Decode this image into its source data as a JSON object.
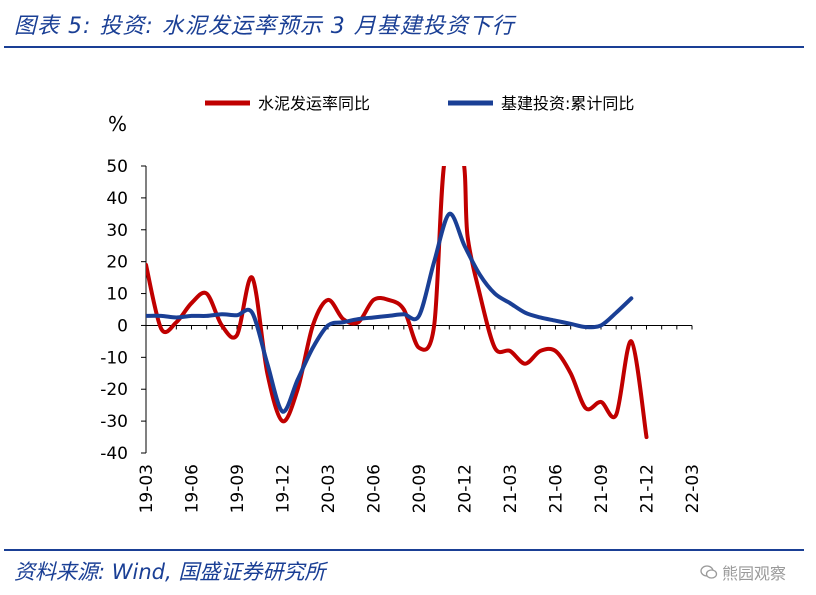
{
  "header": {
    "title": "图表 5:  投资:  水泥发运率预示 3 月基建投资下行"
  },
  "footer": {
    "source": "资料来源:  Wind,  国盛证券研究所",
    "watermark": "熊园观察"
  },
  "chart_data": {
    "type": "line",
    "title": "",
    "ylabel": "%",
    "ylim": [
      -40,
      50
    ],
    "yticks": [
      50,
      40,
      30,
      20,
      10,
      0,
      -10,
      -20,
      -30,
      -40
    ],
    "x_tick_labels": [
      "19-03",
      "19-06",
      "19-09",
      "19-12",
      "20-03",
      "20-06",
      "20-09",
      "20-12",
      "21-03",
      "21-06",
      "21-09",
      "21-12",
      "22-03"
    ],
    "x_index_range": [
      0,
      36
    ],
    "series": [
      {
        "name": "水泥发运率同比",
        "color": "#c00000",
        "points": [
          {
            "x": 0,
            "y": 19
          },
          {
            "x": 1,
            "y": -1
          },
          {
            "x": 2,
            "y": 1
          },
          {
            "x": 3,
            "y": 7
          },
          {
            "x": 4,
            "y": 10
          },
          {
            "x": 5,
            "y": 0
          },
          {
            "x": 6,
            "y": -3
          },
          {
            "x": 7,
            "y": 15
          },
          {
            "x": 8,
            "y": -15
          },
          {
            "x": 9,
            "y": -30
          },
          {
            "x": 10,
            "y": -20
          },
          {
            "x": 11,
            "y": 0
          },
          {
            "x": 12,
            "y": 8
          },
          {
            "x": 13,
            "y": 2
          },
          {
            "x": 14,
            "y": 1
          },
          {
            "x": 15,
            "y": 8
          },
          {
            "x": 16,
            "y": 8
          },
          {
            "x": 17,
            "y": 5
          },
          {
            "x": 18,
            "y": -7
          },
          {
            "x": 19,
            "y": 0
          },
          {
            "x": 19.7,
            "y": 52
          },
          {
            "x": 20.9,
            "y": 52
          },
          {
            "x": 21.2,
            "y": 28
          },
          {
            "x": 22,
            "y": 10
          },
          {
            "x": 23,
            "y": -7
          },
          {
            "x": 24,
            "y": -8
          },
          {
            "x": 25,
            "y": -12
          },
          {
            "x": 26,
            "y": -8
          },
          {
            "x": 27,
            "y": -8
          },
          {
            "x": 28,
            "y": -15
          },
          {
            "x": 29,
            "y": -26
          },
          {
            "x": 30,
            "y": -24
          },
          {
            "x": 31,
            "y": -28
          },
          {
            "x": 32,
            "y": -5
          },
          {
            "x": 33,
            "y": -35
          }
        ]
      },
      {
        "name": "基建投资:累计同比",
        "color": "#1a3f95",
        "points": [
          {
            "x": 0,
            "y": 3
          },
          {
            "x": 1,
            "y": 3
          },
          {
            "x": 2,
            "y": 2.5
          },
          {
            "x": 3,
            "y": 3
          },
          {
            "x": 4,
            "y": 3
          },
          {
            "x": 5,
            "y": 3.5
          },
          {
            "x": 6,
            "y": 3.2
          },
          {
            "x": 7,
            "y": 4
          },
          {
            "x": 8,
            "y": -12
          },
          {
            "x": 9,
            "y": -27
          },
          {
            "x": 10,
            "y": -17
          },
          {
            "x": 11,
            "y": -7
          },
          {
            "x": 12,
            "y": 0
          },
          {
            "x": 13,
            "y": 1
          },
          {
            "x": 14,
            "y": 2
          },
          {
            "x": 15,
            "y": 2.5
          },
          {
            "x": 16,
            "y": 3
          },
          {
            "x": 17,
            "y": 3.5
          },
          {
            "x": 18,
            "y": 3
          },
          {
            "x": 19,
            "y": 20
          },
          {
            "x": 20,
            "y": 35
          },
          {
            "x": 21,
            "y": 25
          },
          {
            "x": 22,
            "y": 16
          },
          {
            "x": 23,
            "y": 10
          },
          {
            "x": 24,
            "y": 7
          },
          {
            "x": 25,
            "y": 4
          },
          {
            "x": 26,
            "y": 2.5
          },
          {
            "x": 27,
            "y": 1.5
          },
          {
            "x": 28,
            "y": 0.5
          },
          {
            "x": 29,
            "y": -0.5
          },
          {
            "x": 30,
            "y": 0
          },
          {
            "x": 31,
            "y": 4
          },
          {
            "x": 32,
            "y": 8.5
          }
        ]
      }
    ],
    "legend": "top-center",
    "grid": false
  }
}
